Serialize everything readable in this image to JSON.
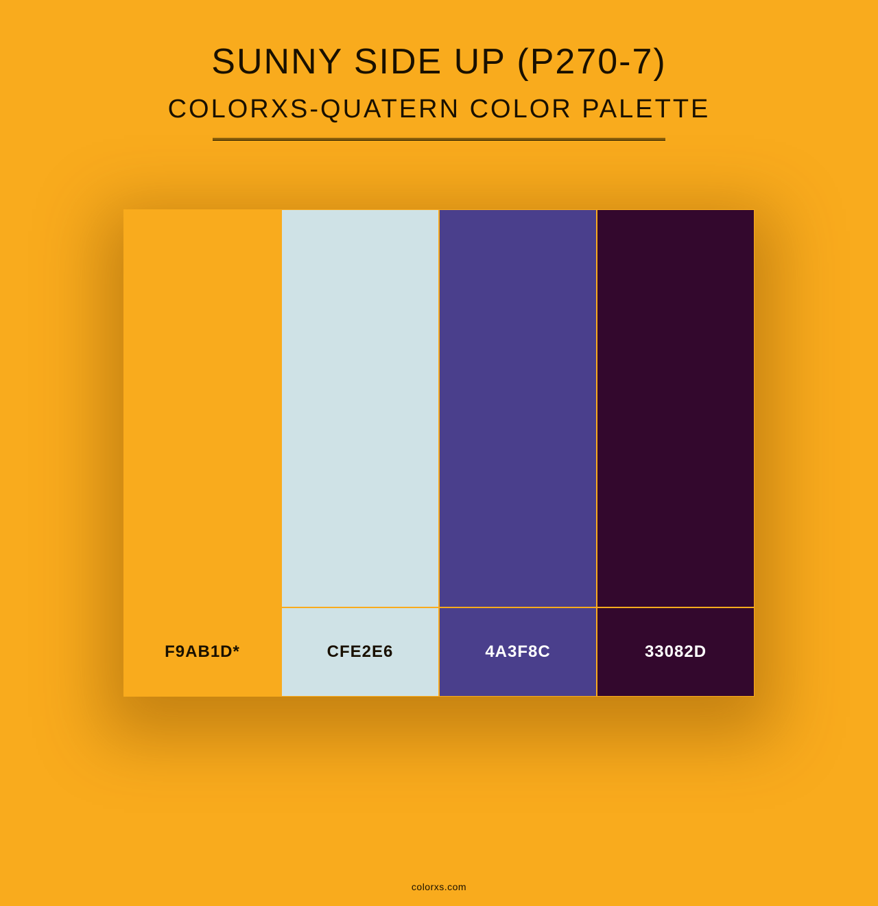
{
  "header": {
    "title": "SUNNY SIDE UP (P270-7)",
    "subtitle": "COLORXS-QUATERN COLOR PALETTE"
  },
  "layout": {
    "background_color": "#f9ab1d",
    "divider_color": "#3a2a00",
    "divider_width": 660,
    "title_fontsize": 52,
    "subtitle_fontsize": 38,
    "title_color": "#191000",
    "palette_width": 920,
    "swatch_height": 580,
    "label_row_height": 130,
    "swatch_border_color": "#f9ab1d"
  },
  "palette": {
    "colors": [
      {
        "hex": "#f9ab1d",
        "label": "F9AB1D*",
        "label_text_color": "#191000"
      },
      {
        "hex": "#cfe2e6",
        "label": "CFE2E6",
        "label_text_color": "#191000"
      },
      {
        "hex": "#4a3f8c",
        "label": "4A3F8C",
        "label_text_color": "#ffffff"
      },
      {
        "hex": "#33082d",
        "label": "33082D",
        "label_text_color": "#ffffff"
      }
    ]
  },
  "footer": {
    "text": "colorxs.com"
  }
}
